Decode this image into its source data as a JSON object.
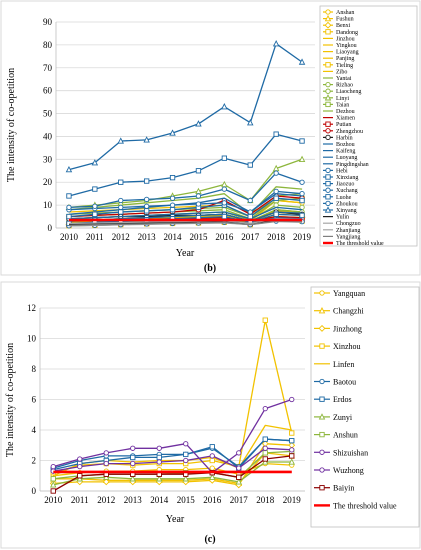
{
  "chart_data": [
    {
      "type": "line",
      "caption": "(b)",
      "ylabel": "The intensity of co-opetition",
      "xlabel": "Year",
      "x": [
        "2010",
        "2011",
        "2012",
        "2013",
        "2014",
        "2015",
        "2016",
        "2017",
        "2018",
        "2019"
      ],
      "ylim": [
        0,
        90
      ],
      "yticks": [
        0,
        10,
        20,
        30,
        40,
        50,
        60,
        70,
        80,
        90
      ],
      "grid": true,
      "legend": "right",
      "series": [
        {
          "name": "Anshan",
          "color": "#F2C200",
          "marker": "circle",
          "values": [
            3,
            3.5,
            4,
            4.5,
            5,
            5.5,
            6,
            3,
            12,
            11
          ]
        },
        {
          "name": "Fushun",
          "color": "#F2C200",
          "marker": "triangle",
          "values": [
            2,
            2.5,
            3,
            3,
            3.5,
            4,
            4.5,
            2.5,
            7,
            6
          ]
        },
        {
          "name": "Benxi",
          "color": "#F2C200",
          "marker": "diamond",
          "values": [
            1.5,
            2,
            2.2,
            2.5,
            3,
            3,
            3.5,
            2,
            5,
            4.5
          ]
        },
        {
          "name": "Dandong",
          "color": "#F2C200",
          "marker": "square",
          "values": [
            2,
            2.5,
            2.8,
            3,
            3.2,
            3.5,
            4,
            2,
            6,
            5.5
          ]
        },
        {
          "name": "Jinzhou",
          "color": "#F2C200",
          "marker": "none",
          "values": [
            3,
            3.5,
            4,
            4,
            4.5,
            5,
            5.5,
            3,
            8,
            7
          ]
        },
        {
          "name": "Yingkou",
          "color": "#F2C200",
          "marker": "none",
          "values": [
            2.5,
            3,
            3.5,
            3.5,
            4,
            4.5,
            5,
            2.5,
            7.5,
            6.5
          ]
        },
        {
          "name": "Liaoyang",
          "color": "#F2C200",
          "marker": "none",
          "values": [
            1.5,
            2,
            2,
            2.5,
            2.5,
            3,
            3.2,
            2,
            4.5,
            4
          ]
        },
        {
          "name": "Panjing",
          "color": "#F2C200",
          "marker": "none",
          "values": [
            2,
            2.2,
            2.5,
            2.8,
            3,
            3.2,
            3.5,
            2,
            5,
            4.5
          ]
        },
        {
          "name": "Tieling",
          "color": "#F2C200",
          "marker": "square",
          "values": [
            1,
            1.2,
            1.5,
            1.8,
            2,
            2.2,
            2.5,
            1.5,
            3.5,
            3
          ]
        },
        {
          "name": "Zibo",
          "color": "#F2C200",
          "marker": "none",
          "values": [
            7,
            7.5,
            8,
            8.5,
            9,
            9.5,
            10,
            5,
            12,
            11
          ]
        },
        {
          "name": "Yantai",
          "color": "#8DB63C",
          "marker": "none",
          "values": [
            8,
            9,
            10,
            11,
            12,
            13,
            15,
            6,
            18,
            17
          ]
        },
        {
          "name": "Rizhao",
          "color": "#8DB63C",
          "marker": "circle",
          "values": [
            3,
            3.5,
            4,
            4.5,
            5,
            5.5,
            6,
            3,
            8,
            7
          ]
        },
        {
          "name": "Liaocheng",
          "color": "#8DB63C",
          "marker": "circle",
          "values": [
            4,
            4.5,
            5,
            5.5,
            6,
            6.5,
            7,
            3.5,
            10,
            9
          ]
        },
        {
          "name": "Linyi",
          "color": "#8DB63C",
          "marker": "triangle",
          "values": [
            9,
            10,
            11,
            12,
            14,
            16,
            19,
            12,
            26,
            30
          ]
        },
        {
          "name": "Taian",
          "color": "#8DB63C",
          "marker": "square",
          "values": [
            5,
            5.5,
            6,
            6.5,
            7,
            7.5,
            8,
            4,
            12,
            13
          ]
        },
        {
          "name": "Dezhou",
          "color": "#8DB63C",
          "marker": "none",
          "values": [
            6,
            6.5,
            7,
            7.5,
            8,
            8.5,
            9,
            5,
            14,
            15
          ]
        },
        {
          "name": "Xiamen",
          "color": "#C00000",
          "marker": "none",
          "values": [
            3,
            3.2,
            3.5,
            3.8,
            4,
            4.2,
            4.5,
            3,
            5,
            4.5
          ]
        },
        {
          "name": "Putian",
          "color": "#C00000",
          "marker": "square",
          "values": [
            1.5,
            1.8,
            2,
            2.2,
            2.5,
            2.8,
            3,
            2,
            4,
            3.5
          ]
        },
        {
          "name": "Zhengzhou",
          "color": "#C00000",
          "marker": "circle",
          "values": [
            5,
            5.5,
            6,
            6.5,
            7,
            8,
            12,
            6,
            14,
            13
          ]
        },
        {
          "name": "Harbin",
          "color": "#1F1F1F",
          "marker": "circle",
          "values": [
            4,
            4.5,
            5,
            5,
            5.5,
            5.5,
            6,
            3,
            7,
            6
          ]
        },
        {
          "name": "Bozhou",
          "color": "#1F6AA5",
          "marker": "none",
          "values": [
            2,
            2.2,
            2.5,
            2.8,
            3,
            3.2,
            3.5,
            2,
            4.5,
            4
          ]
        },
        {
          "name": "Kaifeng",
          "color": "#1F6AA5",
          "marker": "none",
          "values": [
            3,
            3.5,
            4,
            4.5,
            5,
            5.5,
            6,
            3,
            7,
            6.5
          ]
        },
        {
          "name": "Luoyang",
          "color": "#1F6AA5",
          "marker": "none",
          "values": [
            6,
            7,
            8,
            9,
            10,
            11,
            13,
            7,
            15,
            14
          ]
        },
        {
          "name": "Pingdingshan",
          "color": "#1F6AA5",
          "marker": "none",
          "values": [
            4,
            4.5,
            5,
            5.5,
            6,
            6.5,
            7,
            4,
            9,
            8
          ]
        },
        {
          "name": "Hebi",
          "color": "#1F6AA5",
          "marker": "circle",
          "values": [
            1,
            1.2,
            1.5,
            1.8,
            2,
            2.2,
            2.5,
            1.5,
            3,
            2.8
          ]
        },
        {
          "name": "Xinxiang",
          "color": "#1F6AA5",
          "marker": "square",
          "values": [
            14,
            17,
            20,
            20.5,
            22,
            25,
            30.5,
            27.5,
            41,
            38
          ]
        },
        {
          "name": "Jiaozuo",
          "color": "#1F6AA5",
          "marker": "square",
          "values": [
            5,
            6,
            7,
            7.5,
            8,
            9,
            10,
            5,
            13,
            12
          ]
        },
        {
          "name": "Xuchang",
          "color": "#1F6AA5",
          "marker": "circle",
          "values": [
            8,
            8.5,
            9,
            9.5,
            10,
            10.5,
            11,
            7,
            16,
            15
          ]
        },
        {
          "name": "Luohe",
          "color": "#1F6AA5",
          "marker": "square",
          "values": [
            2,
            2.5,
            3,
            3.5,
            4,
            4.5,
            5,
            2.5,
            6,
            5.5
          ]
        },
        {
          "name": "Zhoukou",
          "color": "#1F6AA5",
          "marker": "circle",
          "values": [
            9,
            9.5,
            12,
            12.5,
            13,
            14,
            17,
            12,
            24,
            20
          ]
        },
        {
          "name": "Xinyang",
          "color": "#1F6AA5",
          "marker": "triangle",
          "values": [
            25.5,
            28.5,
            38,
            38.5,
            41.5,
            45.5,
            53,
            46,
            80.5,
            72.5
          ]
        },
        {
          "name": "Yulin",
          "color": "#1F1F1F",
          "marker": "none",
          "values": [
            1.5,
            1.8,
            2,
            2.2,
            2.5,
            2.8,
            3,
            2,
            3.5,
            3.2
          ]
        },
        {
          "name": "Chongzuo",
          "color": "#A6A6A6",
          "marker": "none",
          "values": [
            1,
            1.2,
            1.4,
            1.6,
            1.8,
            2,
            2.2,
            1.5,
            2.8,
            2.5
          ]
        },
        {
          "name": "Zhanjiang",
          "color": "#A6A6A6",
          "marker": "none",
          "values": [
            2,
            2.2,
            2.4,
            2.6,
            2.8,
            3,
            3.2,
            2,
            4,
            3.8
          ]
        },
        {
          "name": "Yangjiang",
          "color": "#7F7F7F",
          "marker": "none",
          "values": [
            1.2,
            1.4,
            1.6,
            1.8,
            2,
            2.2,
            2.4,
            1.5,
            3,
            2.8
          ]
        },
        {
          "name": "The threshold value",
          "color": "#FF0000",
          "marker": "none",
          "threshold": true,
          "values": [
            3.5,
            3.5,
            3.5,
            3.5,
            3.5,
            3.5,
            3.5,
            3.5,
            3.5,
            3.5
          ]
        }
      ]
    },
    {
      "type": "line",
      "caption": "(c)",
      "ylabel": "The intensity of co-opetition",
      "xlabel": "Year",
      "x": [
        "2010",
        "2011",
        "2012",
        "2013",
        "2014",
        "2015",
        "2016",
        "2017",
        "2018",
        "2019"
      ],
      "ylim": [
        0,
        12
      ],
      "yticks": [
        0,
        2,
        4,
        6,
        8,
        10,
        12
      ],
      "grid": true,
      "legend": "right",
      "series": [
        {
          "name": "Yangquan",
          "color": "#F2C200",
          "marker": "circle",
          "values": [
            1.0,
            1.2,
            1.3,
            1.3,
            1.4,
            1.4,
            1.5,
            1.1,
            1.8,
            1.7
          ]
        },
        {
          "name": "Changzhi",
          "color": "#F2C200",
          "marker": "triangle",
          "values": [
            0.8,
            0.8,
            0.7,
            0.7,
            0.7,
            0.7,
            0.8,
            0.5,
            2.5,
            2.3
          ]
        },
        {
          "name": "Jinzhong",
          "color": "#F2C200",
          "marker": "diamond",
          "values": [
            0.5,
            0.6,
            0.6,
            0.6,
            0.6,
            0.6,
            0.7,
            0.4,
            3.1,
            3.0
          ]
        },
        {
          "name": "Xinzhou",
          "color": "#F2C200",
          "marker": "square",
          "values": [
            1.2,
            1.7,
            1.8,
            1.7,
            1.8,
            1.8,
            2.0,
            1.6,
            11.2,
            3.8
          ]
        },
        {
          "name": "Linfen",
          "color": "#F2C200",
          "marker": "none",
          "values": [
            1.0,
            1.8,
            2.0,
            1.9,
            2.0,
            2.0,
            2.2,
            1.5,
            4.3,
            4.0
          ]
        },
        {
          "name": "Baotou",
          "color": "#1F6AA5",
          "marker": "circle",
          "values": [
            1.5,
            2.0,
            2.3,
            2.3,
            2.4,
            2.4,
            2.8,
            1.6,
            3.4,
            3.3
          ]
        },
        {
          "name": "Erdos",
          "color": "#1F6AA5",
          "marker": "square",
          "values": [
            1.4,
            1.8,
            2.0,
            2.2,
            2.2,
            2.4,
            2.9,
            1.5,
            3.4,
            3.3
          ]
        },
        {
          "name": "Zunyi",
          "color": "#8DB63C",
          "marker": "triangle",
          "values": [
            0.4,
            0.8,
            0.9,
            0.8,
            0.8,
            0.8,
            0.9,
            0.6,
            1.9,
            1.9
          ]
        },
        {
          "name": "Anshun",
          "color": "#8DB63C",
          "marker": "square",
          "values": [
            0.8,
            1.0,
            1.1,
            1.1,
            1.1,
            1.2,
            1.2,
            0.9,
            2.5,
            2.6
          ]
        },
        {
          "name": "Shizuishan",
          "color": "#7030A0",
          "marker": "circle",
          "values": [
            1.3,
            1.6,
            1.8,
            1.8,
            1.9,
            2.0,
            2.3,
            1.5,
            2.8,
            2.7
          ]
        },
        {
          "name": "Wuzhong",
          "color": "#7030A0",
          "marker": "circle",
          "values": [
            1.6,
            2.1,
            2.5,
            2.8,
            2.8,
            3.1,
            1.2,
            2.5,
            5.4,
            6.0
          ]
        },
        {
          "name": "Baiyin",
          "color": "#8B0000",
          "marker": "square",
          "values": [
            0.0,
            1.0,
            1.1,
            1.1,
            1.1,
            1.1,
            1.2,
            0.9,
            2.1,
            2.3
          ]
        },
        {
          "name": "The threshold value",
          "color": "#FF0000",
          "marker": "none",
          "threshold": true,
          "values": [
            1.25,
            1.25,
            1.25,
            1.25,
            1.25,
            1.25,
            1.25,
            1.25,
            1.25,
            1.25
          ]
        }
      ]
    }
  ]
}
